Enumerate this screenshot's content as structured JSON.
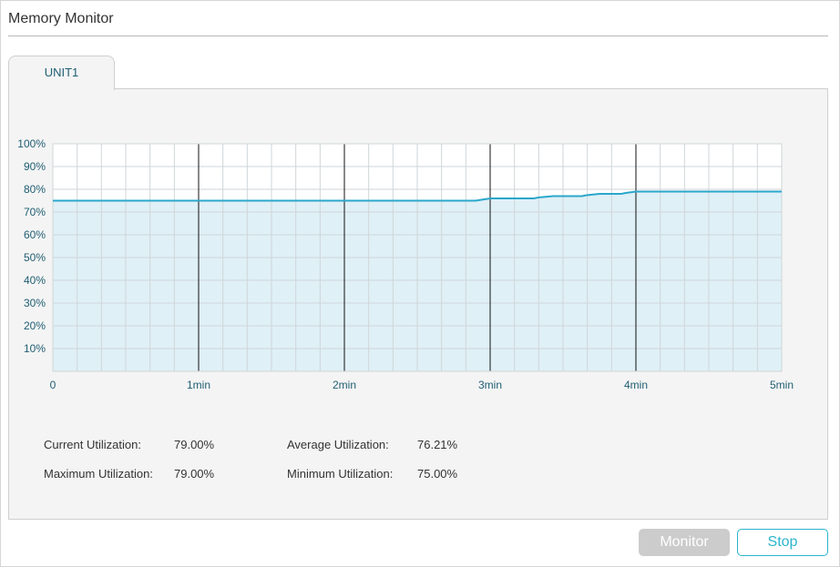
{
  "page": {
    "title": "Memory Monitor"
  },
  "tabs": [
    {
      "label": "UNIT1",
      "active": true
    }
  ],
  "colors": {
    "line": "#2aa7cc",
    "fill": "#dff0f6",
    "grid": "#cfd6d9",
    "major": "#111111",
    "axis_text": "#1f5d72",
    "button_disabled": "#cccccc",
    "button_accent": "#2bb5cc"
  },
  "chart_data": {
    "type": "area",
    "x_unit": "min",
    "xlim": [
      0,
      5
    ],
    "ylim": [
      0,
      100
    ],
    "x_ticks": [
      "0",
      "1min",
      "2min",
      "3min",
      "4min",
      "5min"
    ],
    "y_ticks": [
      "10%",
      "20%",
      "30%",
      "40%",
      "50%",
      "60%",
      "70%",
      "80%",
      "90%",
      "100%"
    ],
    "grid": true,
    "series": [
      {
        "x": [
          0,
          2.9,
          2.94,
          3.0,
          3.3,
          3.33,
          3.43,
          3.47,
          3.63,
          3.66,
          3.75,
          3.8,
          3.9,
          3.93,
          4.0,
          5.0
        ],
        "y": [
          75,
          75,
          75.4,
          76,
          76,
          76.4,
          77,
          77,
          77,
          77.4,
          78,
          78,
          78,
          78.4,
          79,
          79
        ]
      }
    ]
  },
  "stats": {
    "current": {
      "label": "Current Utilization:",
      "value": "79.00%"
    },
    "average": {
      "label": "Average Utilization:",
      "value": "76.21%"
    },
    "maximum": {
      "label": "Maximum Utilization:",
      "value": "79.00%"
    },
    "minimum": {
      "label": "Minimum Utilization:",
      "value": "75.00%"
    }
  },
  "buttons": {
    "monitor": "Monitor",
    "stop": "Stop"
  }
}
